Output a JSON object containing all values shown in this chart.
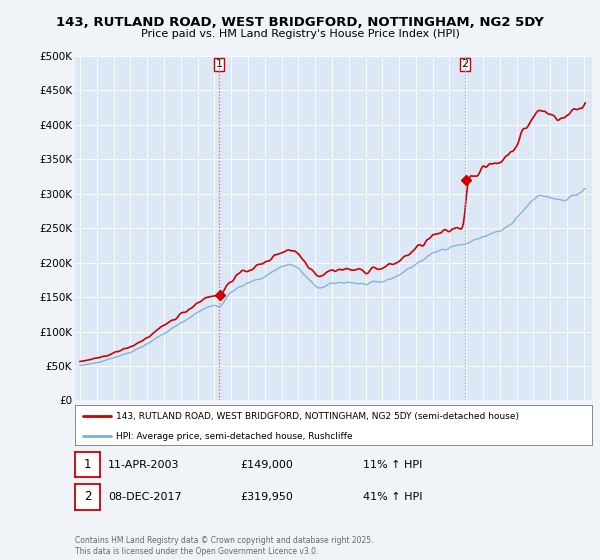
{
  "title": "143, RUTLAND ROAD, WEST BRIDGFORD, NOTTINGHAM, NG2 5DY",
  "subtitle": "Price paid vs. HM Land Registry's House Price Index (HPI)",
  "hpi_label": "HPI: Average price, semi-detached house, Rushcliffe",
  "property_label": "143, RUTLAND ROAD, WEST BRIDGFORD, NOTTINGHAM, NG2 5DY (semi-detached house)",
  "background_color": "#f0f4f8",
  "plot_bg_color": "#dce8f5",
  "line_color_property": "#cc0000",
  "line_color_hpi": "#7bafd4",
  "vline1_color": "#e06060",
  "vline2_color": "#aaaacc",
  "marker_color": "#cc0000",
  "ylim": [
    0,
    500000
  ],
  "yticks": [
    0,
    50000,
    100000,
    150000,
    200000,
    250000,
    300000,
    350000,
    400000,
    450000,
    500000
  ],
  "ytick_labels": [
    "£0",
    "£50K",
    "£100K",
    "£150K",
    "£200K",
    "£250K",
    "£300K",
    "£350K",
    "£400K",
    "£450K",
    "£500K"
  ],
  "xlim_start": 1994.7,
  "xlim_end": 2025.5,
  "xticks": [
    1995,
    1996,
    1997,
    1998,
    1999,
    2000,
    2001,
    2002,
    2003,
    2004,
    2005,
    2006,
    2007,
    2008,
    2009,
    2010,
    2011,
    2012,
    2013,
    2014,
    2015,
    2016,
    2017,
    2018,
    2019,
    2020,
    2021,
    2022,
    2023,
    2024,
    2025
  ],
  "purchase1": {
    "date": 2003.28,
    "price": 149000,
    "label": "1",
    "date_str": "11-APR-2003",
    "price_str": "£149,000",
    "hpi_pct": "11% ↑ HPI"
  },
  "purchase2": {
    "date": 2017.93,
    "price": 319950,
    "label": "2",
    "date_str": "08-DEC-2017",
    "price_str": "£319,950",
    "hpi_pct": "41% ↑ HPI"
  },
  "footer": "Contains HM Land Registry data © Crown copyright and database right 2025.\nThis data is licensed under the Open Government Licence v3.0."
}
